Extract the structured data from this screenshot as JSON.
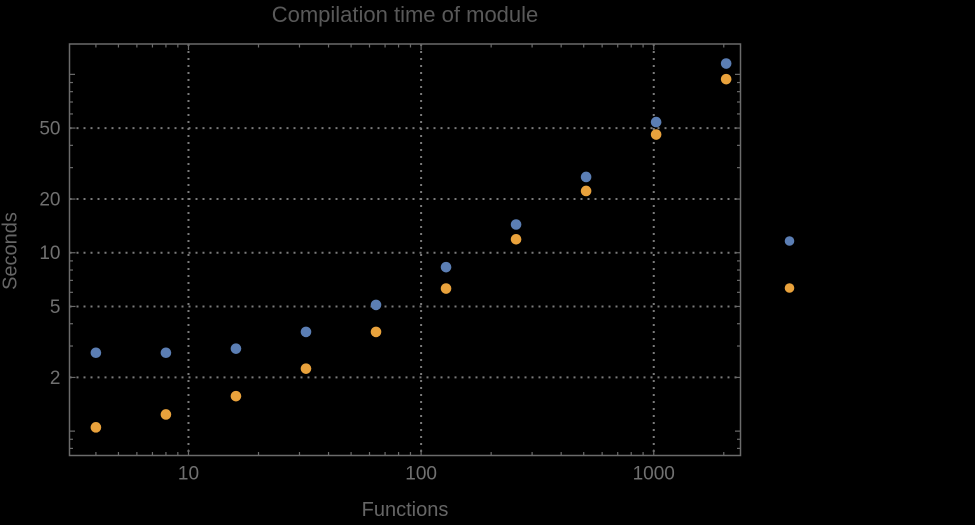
{
  "colors": {
    "background": "#000000",
    "frame": "#6b6b6b",
    "grid": "#7a7a7a",
    "tick_label": "#707070",
    "axis_label": "#666666",
    "title": "#595959",
    "series_blue": "#5B7EB4",
    "series_orange": "#E9A23C"
  },
  "chart_data": {
    "type": "scatter",
    "title": "Compilation time of module",
    "xlabel": "Functions",
    "ylabel": "Seconds",
    "x_scale": "log",
    "y_scale": "log",
    "xlim": [
      3.08,
      2360
    ],
    "ylim": [
      0.73,
      148
    ],
    "grid": "dotted lines at labeled ticks, frame on all four sides, black background",
    "x": [
      4,
      8,
      16,
      32,
      64,
      128,
      256,
      512,
      1024,
      2048
    ],
    "series": [
      {
        "id": "series-1",
        "color": "#5B7EB4",
        "values": [
          2.75,
          2.75,
          2.9,
          3.6,
          5.1,
          8.3,
          14.4,
          26.6,
          54,
          115
        ]
      },
      {
        "id": "series-2",
        "color": "#E9A23C",
        "values": [
          1.05,
          1.24,
          1.57,
          2.24,
          3.6,
          6.3,
          11.9,
          22.2,
          46,
          94
        ]
      }
    ],
    "x_tick_values": [
      10,
      100,
      1000
    ],
    "x_tick_labels": [
      "10",
      "100",
      "1000"
    ],
    "y_tick_values": [
      2,
      5,
      10,
      20,
      50
    ],
    "y_tick_labels": [
      "2",
      "5",
      "10",
      "20",
      "50"
    ],
    "y_unlabeled_major_ticks": [
      1,
      100
    ],
    "legend": {
      "position": "right-outside",
      "marker_colors": [
        "#5B7EB4",
        "#E9A23C"
      ],
      "labels_visible": false
    }
  }
}
